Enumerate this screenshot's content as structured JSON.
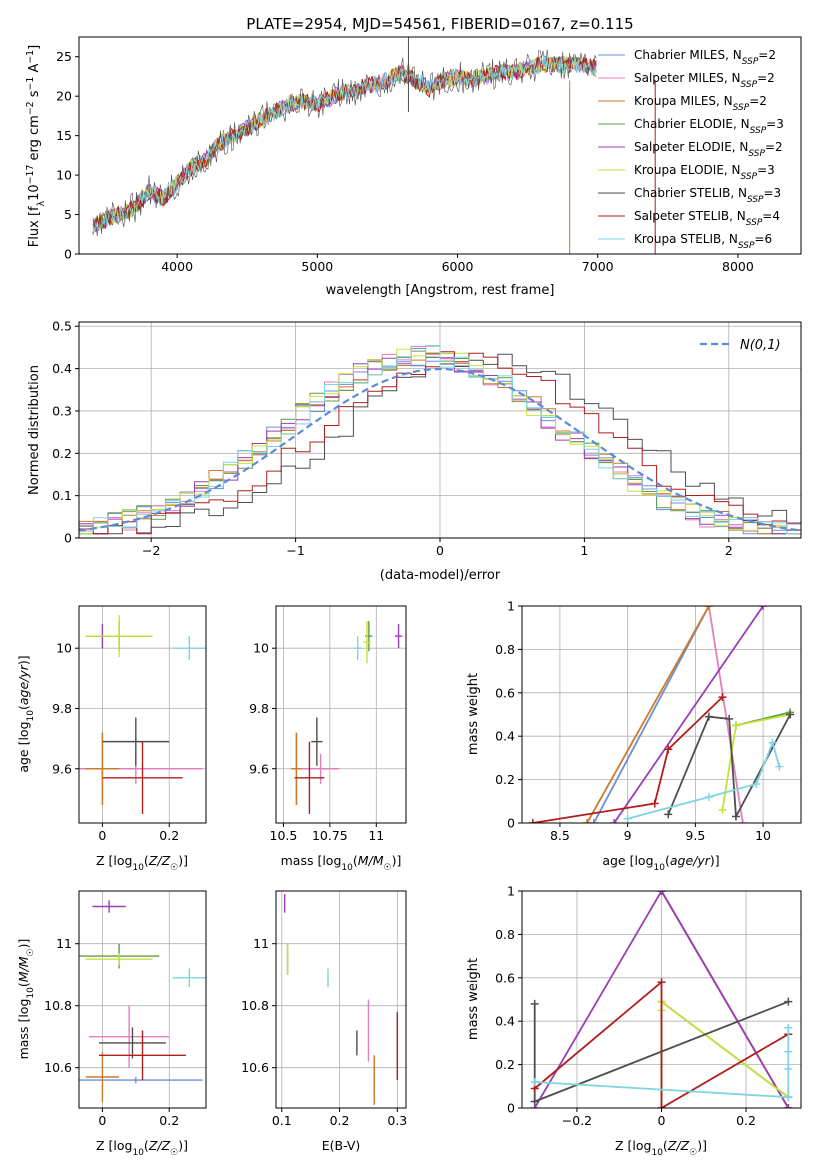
{
  "figure": {
    "title": "PLATE=2954, MJD=54561, FIBERID=0167, z=0.115"
  },
  "models": [
    {
      "label": "Chabrier MILES, N_SSP=2",
      "name": "Chabrier MILES",
      "nssp": "2",
      "color": "#6a8fd8"
    },
    {
      "label": "Salpeter MILES, N_SSP=2",
      "name": "Salpeter MILES",
      "nssp": "2",
      "color": "#e17fc0"
    },
    {
      "label": "Kroupa MILES, N_SSP=2",
      "name": "Kroupa MILES",
      "nssp": "2",
      "color": "#cd7a2a"
    },
    {
      "label": "Chabrier ELODIE, N_SSP=3",
      "name": "Chabrier ELODIE",
      "nssp": "3",
      "color": "#5f9c4c"
    },
    {
      "label": "Salpeter ELODIE, N_SSP=2",
      "name": "Salpeter ELODIE",
      "nssp": "2",
      "color": "#9a3fb5"
    },
    {
      "label": "Kroupa ELODIE, N_SSP=3",
      "name": "Kroupa ELODIE",
      "nssp": "3",
      "color": "#c6e23a"
    },
    {
      "label": "Chabrier STELIB, N_SSP=3",
      "name": "Chabrier STELIB",
      "nssp": "3",
      "color": "#4d4d4d"
    },
    {
      "label": "Salpeter STELIB, N_SSP=4",
      "name": "Salpeter STELIB",
      "nssp": "4",
      "color": "#b01d1d"
    },
    {
      "label": "Kroupa STELIB, N_SSP=6",
      "name": "Kroupa STELIB",
      "nssp": "6",
      "color": "#7fd4e0"
    }
  ],
  "chart_data": [
    {
      "id": "spectrum",
      "type": "line",
      "title": "PLATE=2954, MJD=54561, FIBERID=0167, z=0.115",
      "xlabel": "wavelength [Angstrom, rest frame]",
      "ylabel": "Flux [f_λ 10^-17 erg cm^-2 s^-1 A^-1]",
      "xlim": [
        3300,
        8450
      ],
      "ylim": [
        0,
        27.5
      ],
      "xticks": [
        4000,
        5000,
        6000,
        7000,
        8000
      ],
      "yticks": [
        0,
        5,
        10,
        15,
        20,
        25
      ],
      "grid": false,
      "legend": "right",
      "x": [
        3400,
        3500,
        3600,
        3700,
        3800,
        3900,
        4000,
        4100,
        4200,
        4300,
        4400,
        4500,
        4600,
        4700,
        4800,
        4900,
        5000,
        5100,
        5200,
        5300,
        5400,
        5500,
        5600,
        5700,
        5800,
        5900,
        6000,
        6100,
        6200,
        6300,
        6400,
        6500,
        6600,
        6700,
        6800,
        6900,
        7000
      ],
      "y": [
        3.5,
        4.5,
        5,
        6,
        8,
        7,
        9,
        11,
        12,
        14,
        15,
        16,
        17,
        18,
        19,
        19.5,
        19,
        20,
        20.5,
        21,
        21.5,
        22,
        23,
        22,
        21,
        22,
        22.5,
        22,
        22.5,
        23,
        23,
        23.5,
        24,
        24,
        24,
        24,
        23.5
      ]
    },
    {
      "id": "residuals",
      "type": "line",
      "xlabel": "(data-model)/error",
      "ylabel": "Normed distribution",
      "xlim": [
        -2.5,
        2.5
      ],
      "ylim": [
        0,
        0.51
      ],
      "xticks": [
        -2,
        -1,
        0,
        1,
        2
      ],
      "yticks": [
        0.0,
        0.1,
        0.2,
        0.3,
        0.4,
        0.5
      ],
      "grid": true,
      "legend": "top-right",
      "gaussian_label": "N(0,1)",
      "gaussian_color": "#5b8bdb"
    },
    {
      "id": "z-vs-age",
      "type": "scatter",
      "xlabel": "Z [log10(Z/Z☉)]",
      "ylabel": "age [log10(age/yr)]",
      "xlim": [
        -0.07,
        0.31
      ],
      "ylim": [
        9.42,
        10.14
      ],
      "xticks": [
        0.0,
        0.2
      ],
      "yticks": [
        9.6,
        9.8,
        10.0
      ],
      "grid": true,
      "points": [
        {
          "model": 0,
          "x": 0.0,
          "y": 9.6,
          "xerr": 0.3,
          "yerr": 0.12
        },
        {
          "model": 1,
          "x": 0.1,
          "y": 9.6,
          "xerr": 0.2,
          "yerr": 0.05
        },
        {
          "model": 2,
          "x": 0.0,
          "y": 9.6,
          "xerr": 0.05,
          "yerr": 0.12
        },
        {
          "model": 3,
          "x": 0.05,
          "y": 10.04,
          "xerr": 0.1,
          "yerr": 0.05
        },
        {
          "model": 4,
          "x": 0.0,
          "y": 10.04,
          "xerr": 0.03,
          "yerr": 0.04
        },
        {
          "model": 5,
          "x": 0.05,
          "y": 10.04,
          "xerr": 0.1,
          "yerr": 0.07
        },
        {
          "model": 6,
          "x": 0.1,
          "y": 9.69,
          "xerr": 0.1,
          "yerr": 0.08
        },
        {
          "model": 7,
          "x": 0.12,
          "y": 9.57,
          "xerr": 0.12,
          "yerr": 0.12
        },
        {
          "model": 8,
          "x": 0.26,
          "y": 10.0,
          "xerr": 0.05,
          "yerr": 0.04
        }
      ]
    },
    {
      "id": "mass-vs-age",
      "type": "scatter",
      "xlabel": "mass [log10(M/M☉)]",
      "ylabel": "",
      "xlim": [
        10.46,
        11.16
      ],
      "ylim": [
        9.42,
        10.14
      ],
      "xticks": [
        10.5,
        10.75,
        11.0
      ],
      "yticks": [
        9.6,
        9.8,
        10.0
      ],
      "grid": true,
      "points": [
        {
          "model": 0,
          "x": 10.57,
          "y": 9.6,
          "xerr": 0.01,
          "yerr": 0.12
        },
        {
          "model": 1,
          "x": 10.7,
          "y": 9.6,
          "xerr": 0.1,
          "yerr": 0.05
        },
        {
          "model": 2,
          "x": 10.57,
          "y": 9.6,
          "xerr": 0.03,
          "yerr": 0.12
        },
        {
          "model": 3,
          "x": 10.96,
          "y": 10.04,
          "xerr": 0.02,
          "yerr": 0.05
        },
        {
          "model": 4,
          "x": 11.12,
          "y": 10.04,
          "xerr": 0.02,
          "yerr": 0.04
        },
        {
          "model": 5,
          "x": 10.95,
          "y": 10.02,
          "xerr": 0.02,
          "yerr": 0.07
        },
        {
          "model": 6,
          "x": 10.68,
          "y": 9.69,
          "xerr": 0.03,
          "yerr": 0.08
        },
        {
          "model": 7,
          "x": 10.64,
          "y": 9.57,
          "xerr": 0.08,
          "yerr": 0.12
        },
        {
          "model": 8,
          "x": 10.9,
          "y": 10.0,
          "xerr": 0.02,
          "yerr": 0.04
        }
      ]
    },
    {
      "id": "age-vs-weight",
      "type": "line",
      "xlabel": "age [log10(age/yr)]",
      "ylabel": "mass weight",
      "xlim": [
        8.22,
        10.28
      ],
      "ylim": [
        0.0,
        1.0
      ],
      "xticks": [
        8.5,
        9.0,
        9.5,
        10.0
      ],
      "yticks": [
        0.0,
        0.2,
        0.4,
        0.6,
        0.8,
        1.0
      ],
      "grid": true,
      "series": [
        {
          "model": 0,
          "x": [
            8.75,
            9.6
          ],
          "y": [
            0.0,
            1.0
          ]
        },
        {
          "model": 1,
          "x": [
            9.6,
            9.85
          ],
          "y": [
            1.0,
            0.0
          ]
        },
        {
          "model": 2,
          "x": [
            8.7,
            9.6
          ],
          "y": [
            0.0,
            1.0
          ]
        },
        {
          "model": 3,
          "x": [
            9.8,
            10.2
          ],
          "y": [
            0.45,
            0.51
          ]
        },
        {
          "model": 4,
          "x": [
            8.9,
            10.0
          ],
          "y": [
            0.0,
            1.0
          ]
        },
        {
          "model": 5,
          "x": [
            9.7,
            9.8,
            10.2
          ],
          "y": [
            0.06,
            0.45,
            0.5
          ]
        },
        {
          "model": 6,
          "x": [
            9.3,
            9.6,
            9.75,
            9.8,
            10.2
          ],
          "y": [
            0.04,
            0.49,
            0.48,
            0.03,
            0.5
          ]
        },
        {
          "model": 7,
          "x": [
            8.3,
            9.2,
            9.3,
            9.7
          ],
          "y": [
            0.0,
            0.09,
            0.34,
            0.58
          ]
        },
        {
          "model": 8,
          "x": [
            9.0,
            9.6,
            9.95,
            10.07,
            10.12
          ],
          "y": [
            0.02,
            0.12,
            0.18,
            0.37,
            0.26
          ]
        }
      ]
    },
    {
      "id": "z-vs-mass",
      "type": "scatter",
      "xlabel": "Z [log10(Z/Z☉)]",
      "ylabel": "mass [log10(M/M☉)]",
      "xlim": [
        -0.07,
        0.31
      ],
      "ylim": [
        10.47,
        11.17
      ],
      "xticks": [
        0.0,
        0.2
      ],
      "yticks": [
        10.6,
        10.8,
        11.0
      ],
      "grid": true,
      "points": [
        {
          "model": 0,
          "x": 0.1,
          "y": 10.56,
          "xerr": 0.2,
          "yerr": 0.01
        },
        {
          "model": 1,
          "x": 0.08,
          "y": 10.7,
          "xerr": 0.12,
          "yerr": 0.1
        },
        {
          "model": 2,
          "x": 0.0,
          "y": 10.57,
          "xerr": 0.05,
          "yerr": 0.08
        },
        {
          "model": 3,
          "x": 0.05,
          "y": 10.96,
          "xerr": 0.12,
          "yerr": 0.04
        },
        {
          "model": 4,
          "x": 0.02,
          "y": 11.12,
          "xerr": 0.05,
          "yerr": 0.02
        },
        {
          "model": 5,
          "x": 0.05,
          "y": 10.95,
          "xerr": 0.1,
          "yerr": 0.02
        },
        {
          "model": 6,
          "x": 0.09,
          "y": 10.68,
          "xerr": 0.1,
          "yerr": 0.05
        },
        {
          "model": 7,
          "x": 0.12,
          "y": 10.64,
          "xerr": 0.13,
          "yerr": 0.08
        },
        {
          "model": 8,
          "x": 0.26,
          "y": 10.89,
          "xerr": 0.05,
          "yerr": 0.03
        }
      ]
    },
    {
      "id": "ebv-vs-mass",
      "type": "scatter",
      "xlabel": "E(B-V)",
      "ylabel": "",
      "xlim": [
        0.09,
        0.315
      ],
      "ylim": [
        10.47,
        11.17
      ],
      "xticks": [
        0.1,
        0.2,
        0.3
      ],
      "yticks": [
        10.6,
        10.8,
        11.0
      ],
      "grid": true,
      "points": [
        {
          "model": 0,
          "x": 0.26,
          "y": 10.56,
          "xerr": 0.0,
          "yerr": 0.04
        },
        {
          "model": 1,
          "x": 0.25,
          "y": 10.72,
          "xerr": 0.0,
          "yerr": 0.1
        },
        {
          "model": 2,
          "x": 0.26,
          "y": 10.56,
          "xerr": 0.0,
          "yerr": 0.08
        },
        {
          "model": 3,
          "x": 0.11,
          "y": 10.95,
          "xerr": 0.0,
          "yerr": 0.05
        },
        {
          "model": 4,
          "x": 0.105,
          "y": 11.13,
          "xerr": 0.0,
          "yerr": 0.03
        },
        {
          "model": 5,
          "x": 0.11,
          "y": 10.95,
          "xerr": 0.0,
          "yerr": 0.05
        },
        {
          "model": 6,
          "x": 0.23,
          "y": 10.68,
          "xerr": 0.0,
          "yerr": 0.04
        },
        {
          "model": 7,
          "x": 0.3,
          "y": 10.67,
          "xerr": 0.0,
          "yerr": 0.11
        },
        {
          "model": 8,
          "x": 0.18,
          "y": 10.89,
          "xerr": 0.0,
          "yerr": 0.03
        }
      ]
    },
    {
      "id": "z-vs-weight",
      "type": "line",
      "xlabel": "Z [log10(Z/Z☉)]",
      "ylabel": "mass weight",
      "xlim": [
        -0.33,
        0.33
      ],
      "ylim": [
        0.0,
        1.0
      ],
      "xticks": [
        -0.2,
        0.0,
        0.2
      ],
      "yticks": [
        0.0,
        0.2,
        0.4,
        0.6,
        0.8,
        1.0
      ],
      "grid": true,
      "series": [
        {
          "model": 0,
          "x": [
            0.0,
            0.3
          ],
          "y": [
            1.0,
            0.0
          ]
        },
        {
          "model": 1,
          "x": [
            0.0,
            0.3
          ],
          "y": [
            1.0,
            0.0
          ]
        },
        {
          "model": 2,
          "x": [
            0.0,
            0.3
          ],
          "y": [
            1.0,
            0.0
          ]
        },
        {
          "model": 3,
          "x": [
            0.0,
            0.0,
            0.3
          ],
          "y": [
            0.0,
            0.49,
            0.05
          ]
        },
        {
          "model": 4,
          "x": [
            -0.3,
            0.0,
            0.3
          ],
          "y": [
            0.0,
            1.0,
            0.0
          ]
        },
        {
          "model": 5,
          "x": [
            0.0,
            0.0,
            0.3
          ],
          "y": [
            0.45,
            0.49,
            0.05
          ]
        },
        {
          "model": 6,
          "x": [
            -0.3,
            -0.3,
            0.3
          ],
          "y": [
            0.48,
            0.03,
            0.49
          ]
        },
        {
          "model": 7,
          "x": [
            -0.3,
            0.0,
            0.0,
            0.3
          ],
          "y": [
            0.09,
            0.58,
            0.0,
            0.34
          ]
        },
        {
          "model": 8,
          "x": [
            -0.3,
            0.3,
            0.3,
            0.3,
            0.3
          ],
          "y": [
            0.12,
            0.05,
            0.37,
            0.26,
            0.18
          ]
        }
      ]
    }
  ]
}
